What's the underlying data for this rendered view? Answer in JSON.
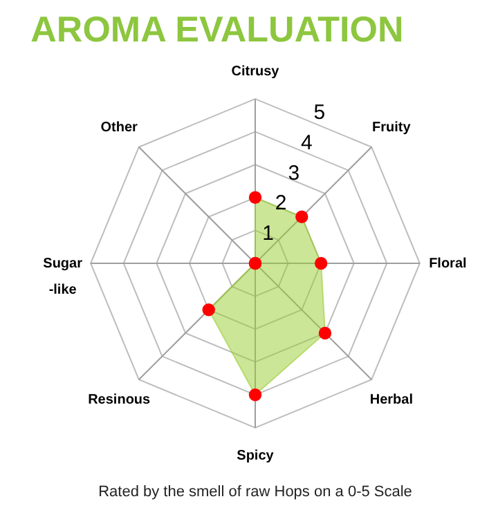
{
  "chart_data": {
    "type": "radar",
    "title": "AROMA EVALUATION",
    "categories": [
      "Citrusy",
      "Fruity",
      "Floral",
      "Herbal",
      "Spicy",
      "Resinous",
      "Sugar\n-like",
      "Other"
    ],
    "series": [
      {
        "color": "#9acd32",
        "values": [
          2,
          2,
          2,
          3,
          4,
          2,
          0,
          0
        ]
      }
    ],
    "ylim": [
      0,
      5
    ],
    "yticks": [
      1,
      2,
      3,
      4,
      5
    ],
    "marker": "circle",
    "annotations": [
      "Rated by the smell of raw Hops on a 0-5 Scale"
    ]
  }
}
